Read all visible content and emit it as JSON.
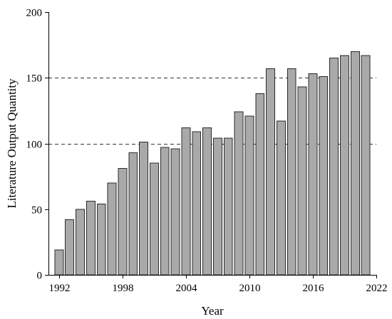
{
  "chart_data": {
    "type": "bar",
    "title": "",
    "xlabel": "Year",
    "ylabel": "Literature Output Quantity",
    "x": [
      1992,
      1993,
      1994,
      1995,
      1996,
      1997,
      1998,
      1999,
      2000,
      2001,
      2002,
      2003,
      2004,
      2005,
      2006,
      2007,
      2008,
      2009,
      2010,
      2011,
      2012,
      2013,
      2014,
      2015,
      2016,
      2017,
      2018,
      2019,
      2020,
      2021
    ],
    "values": [
      19,
      42,
      50,
      56,
      54,
      70,
      81,
      93,
      101,
      85,
      97,
      96,
      112,
      109,
      112,
      104,
      104,
      124,
      121,
      138,
      157,
      117,
      157,
      143,
      153,
      151,
      165,
      167,
      170,
      167
    ],
    "xlim": [
      1991,
      2022
    ],
    "ylim": [
      0,
      200
    ],
    "xticks": [
      1992,
      1998,
      2004,
      2010,
      2016,
      2022
    ],
    "yticks": [
      0,
      50,
      100,
      150,
      200
    ],
    "reference_lines": [
      100,
      150
    ],
    "grid": false,
    "colors": {
      "bar_fill": "#a9a9a9",
      "bar_edge": "#2a2a2a",
      "reference_line": "#333333"
    }
  }
}
